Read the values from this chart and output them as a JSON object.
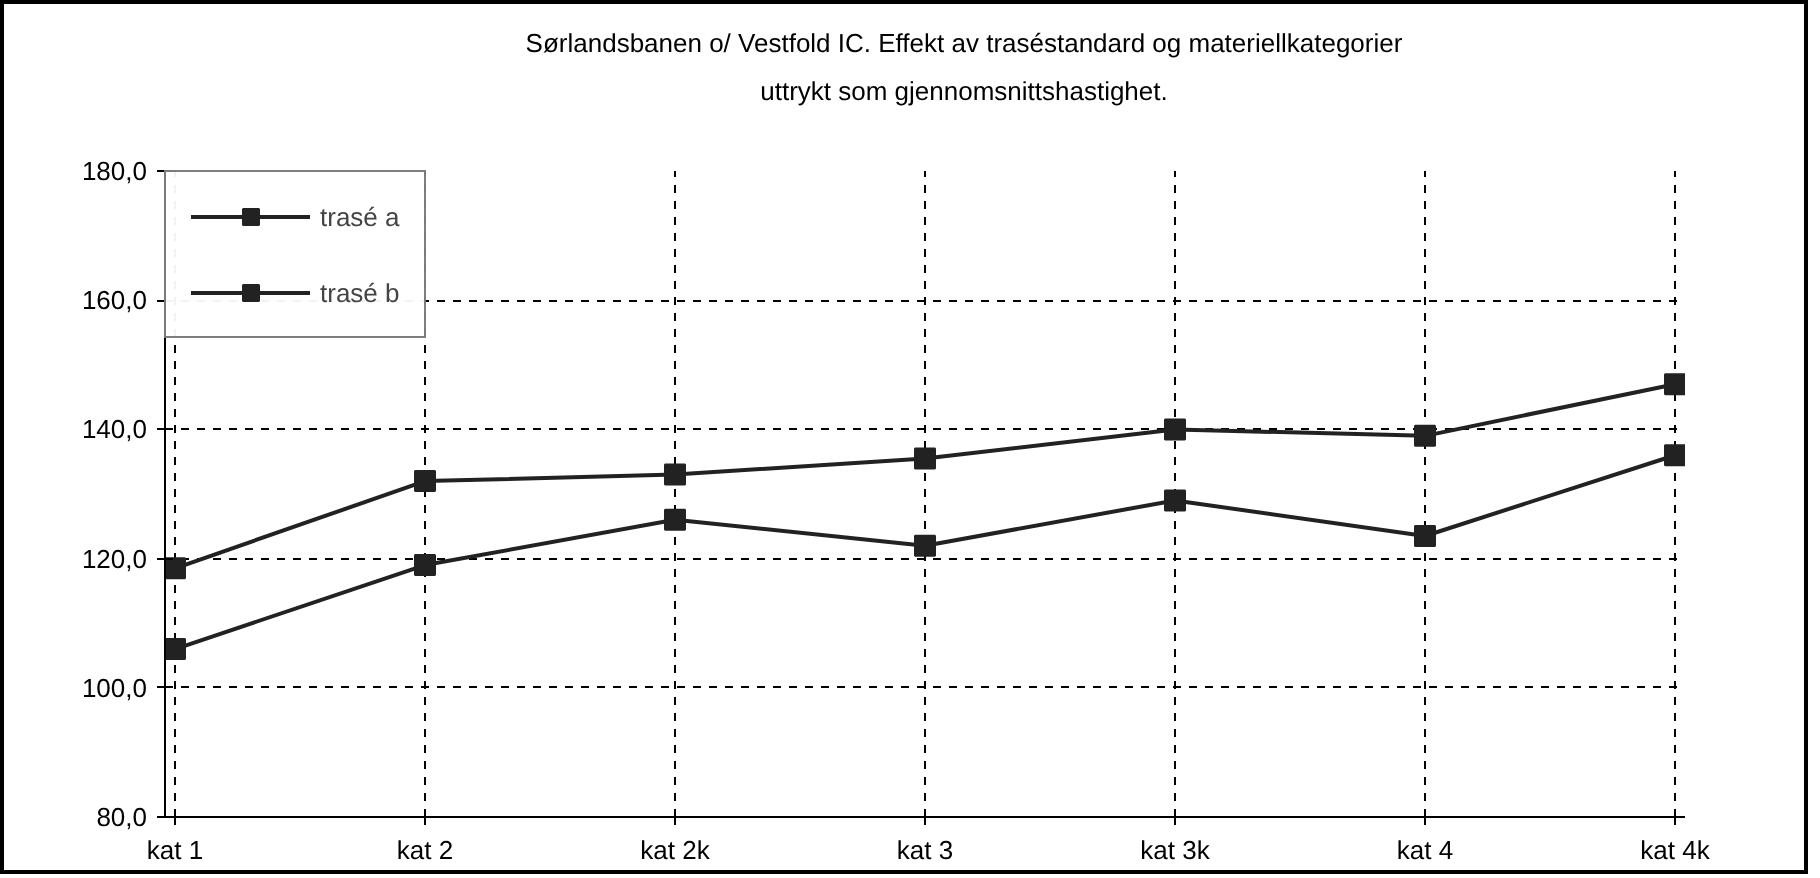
{
  "chart_data": {
    "type": "line",
    "title": "Sørlandsbanen o/ Vestfold IC. Effekt av traséstandard og materiellkategorier uttrykt som gjennomsnittshastighet.",
    "categories": [
      "kat 1",
      "kat 2",
      "kat 2k",
      "kat 3",
      "kat 3k",
      "kat 4",
      "kat 4k"
    ],
    "series": [
      {
        "name": "trasé a",
        "color": "#222222",
        "values": [
          118.5,
          132,
          133,
          135.5,
          140,
          139,
          147
        ]
      },
      {
        "name": "trasé b",
        "color": "#222222",
        "values": [
          106,
          119,
          126,
          122,
          129,
          123.5,
          136
        ]
      }
    ],
    "ylim": [
      80,
      180
    ],
    "yticks": [
      {
        "value": 80,
        "label": "80,0"
      },
      {
        "value": 100,
        "label": "100,0"
      },
      {
        "value": 120,
        "label": "120,0"
      },
      {
        "value": 140,
        "label": "140,0"
      },
      {
        "value": 160,
        "label": "160,0"
      },
      {
        "value": 180,
        "label": "180,0"
      }
    ],
    "grid": true,
    "legend": "top left",
    "marker": "square",
    "line_style": "solid"
  }
}
